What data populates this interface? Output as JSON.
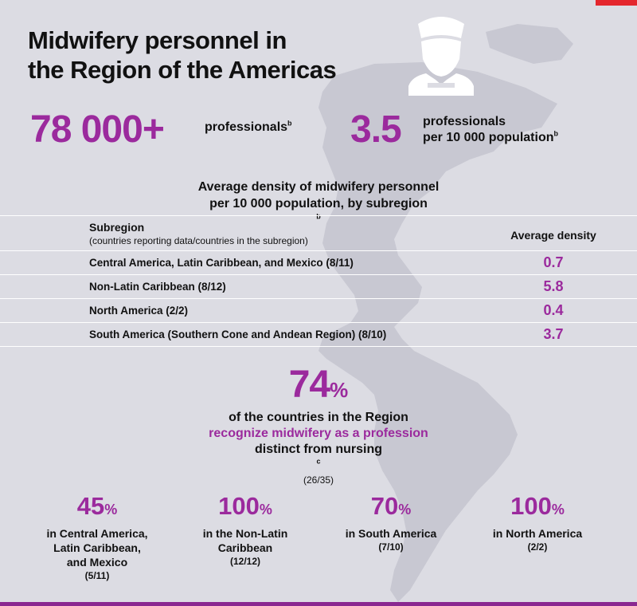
{
  "title": {
    "line1": "Midwifery personnel in",
    "line2": "the Region of the Americas"
  },
  "stats": {
    "total_value": "78 000+",
    "total_label": "professionals",
    "total_note": "b",
    "density_value": "3.5",
    "density_label_line1": "professionals",
    "density_label_line2": "per 10 000 population",
    "density_note": "b"
  },
  "table": {
    "title_line1": "Average density of midwifery personnel",
    "title_line2": "per 10 000 population, by subregion",
    "title_note": "b",
    "col_subregion": "Subregion",
    "col_subregion_sub": "(countries reporting data/countries in the subregion)",
    "col_density": "Average density",
    "rows": [
      {
        "name": "Central America, Latin Caribbean, and Mexico (8/11)",
        "value": "0.7"
      },
      {
        "name": "Non-Latin Caribbean (8/12)",
        "value": "5.8"
      },
      {
        "name": "North America (2/2)",
        "value": "0.4"
      },
      {
        "name": "South America (Southern Cone and Andean Region) (8/10)",
        "value": "3.7"
      }
    ]
  },
  "recognition": {
    "value": "74",
    "unit": "%",
    "line1": "of the countries in the Region",
    "line2": "recognize midwifery as a profession",
    "line3": "distinct from nursing",
    "line3_note": "c",
    "fraction": "(26/35)"
  },
  "subregions": [
    {
      "value": "45",
      "unit": "%",
      "desc_lines": [
        "in Central America,",
        "Latin Caribbean,",
        "and Mexico"
      ],
      "fraction": "(5/11)"
    },
    {
      "value": "100",
      "unit": "%",
      "desc_lines": [
        "in the Non-Latin",
        "Caribbean"
      ],
      "fraction": "(12/12)"
    },
    {
      "value": "70",
      "unit": "%",
      "desc_lines": [
        "in South America"
      ],
      "fraction": "(7/10)"
    },
    {
      "value": "100",
      "unit": "%",
      "desc_lines": [
        "in North America"
      ],
      "fraction": "(2/2)"
    }
  ],
  "colors": {
    "accent": "#9b2a9d",
    "background": "#dcdce3",
    "red_tab": "#e4262d"
  },
  "icons": {
    "header": "midwife-icon",
    "background": "americas-map"
  }
}
